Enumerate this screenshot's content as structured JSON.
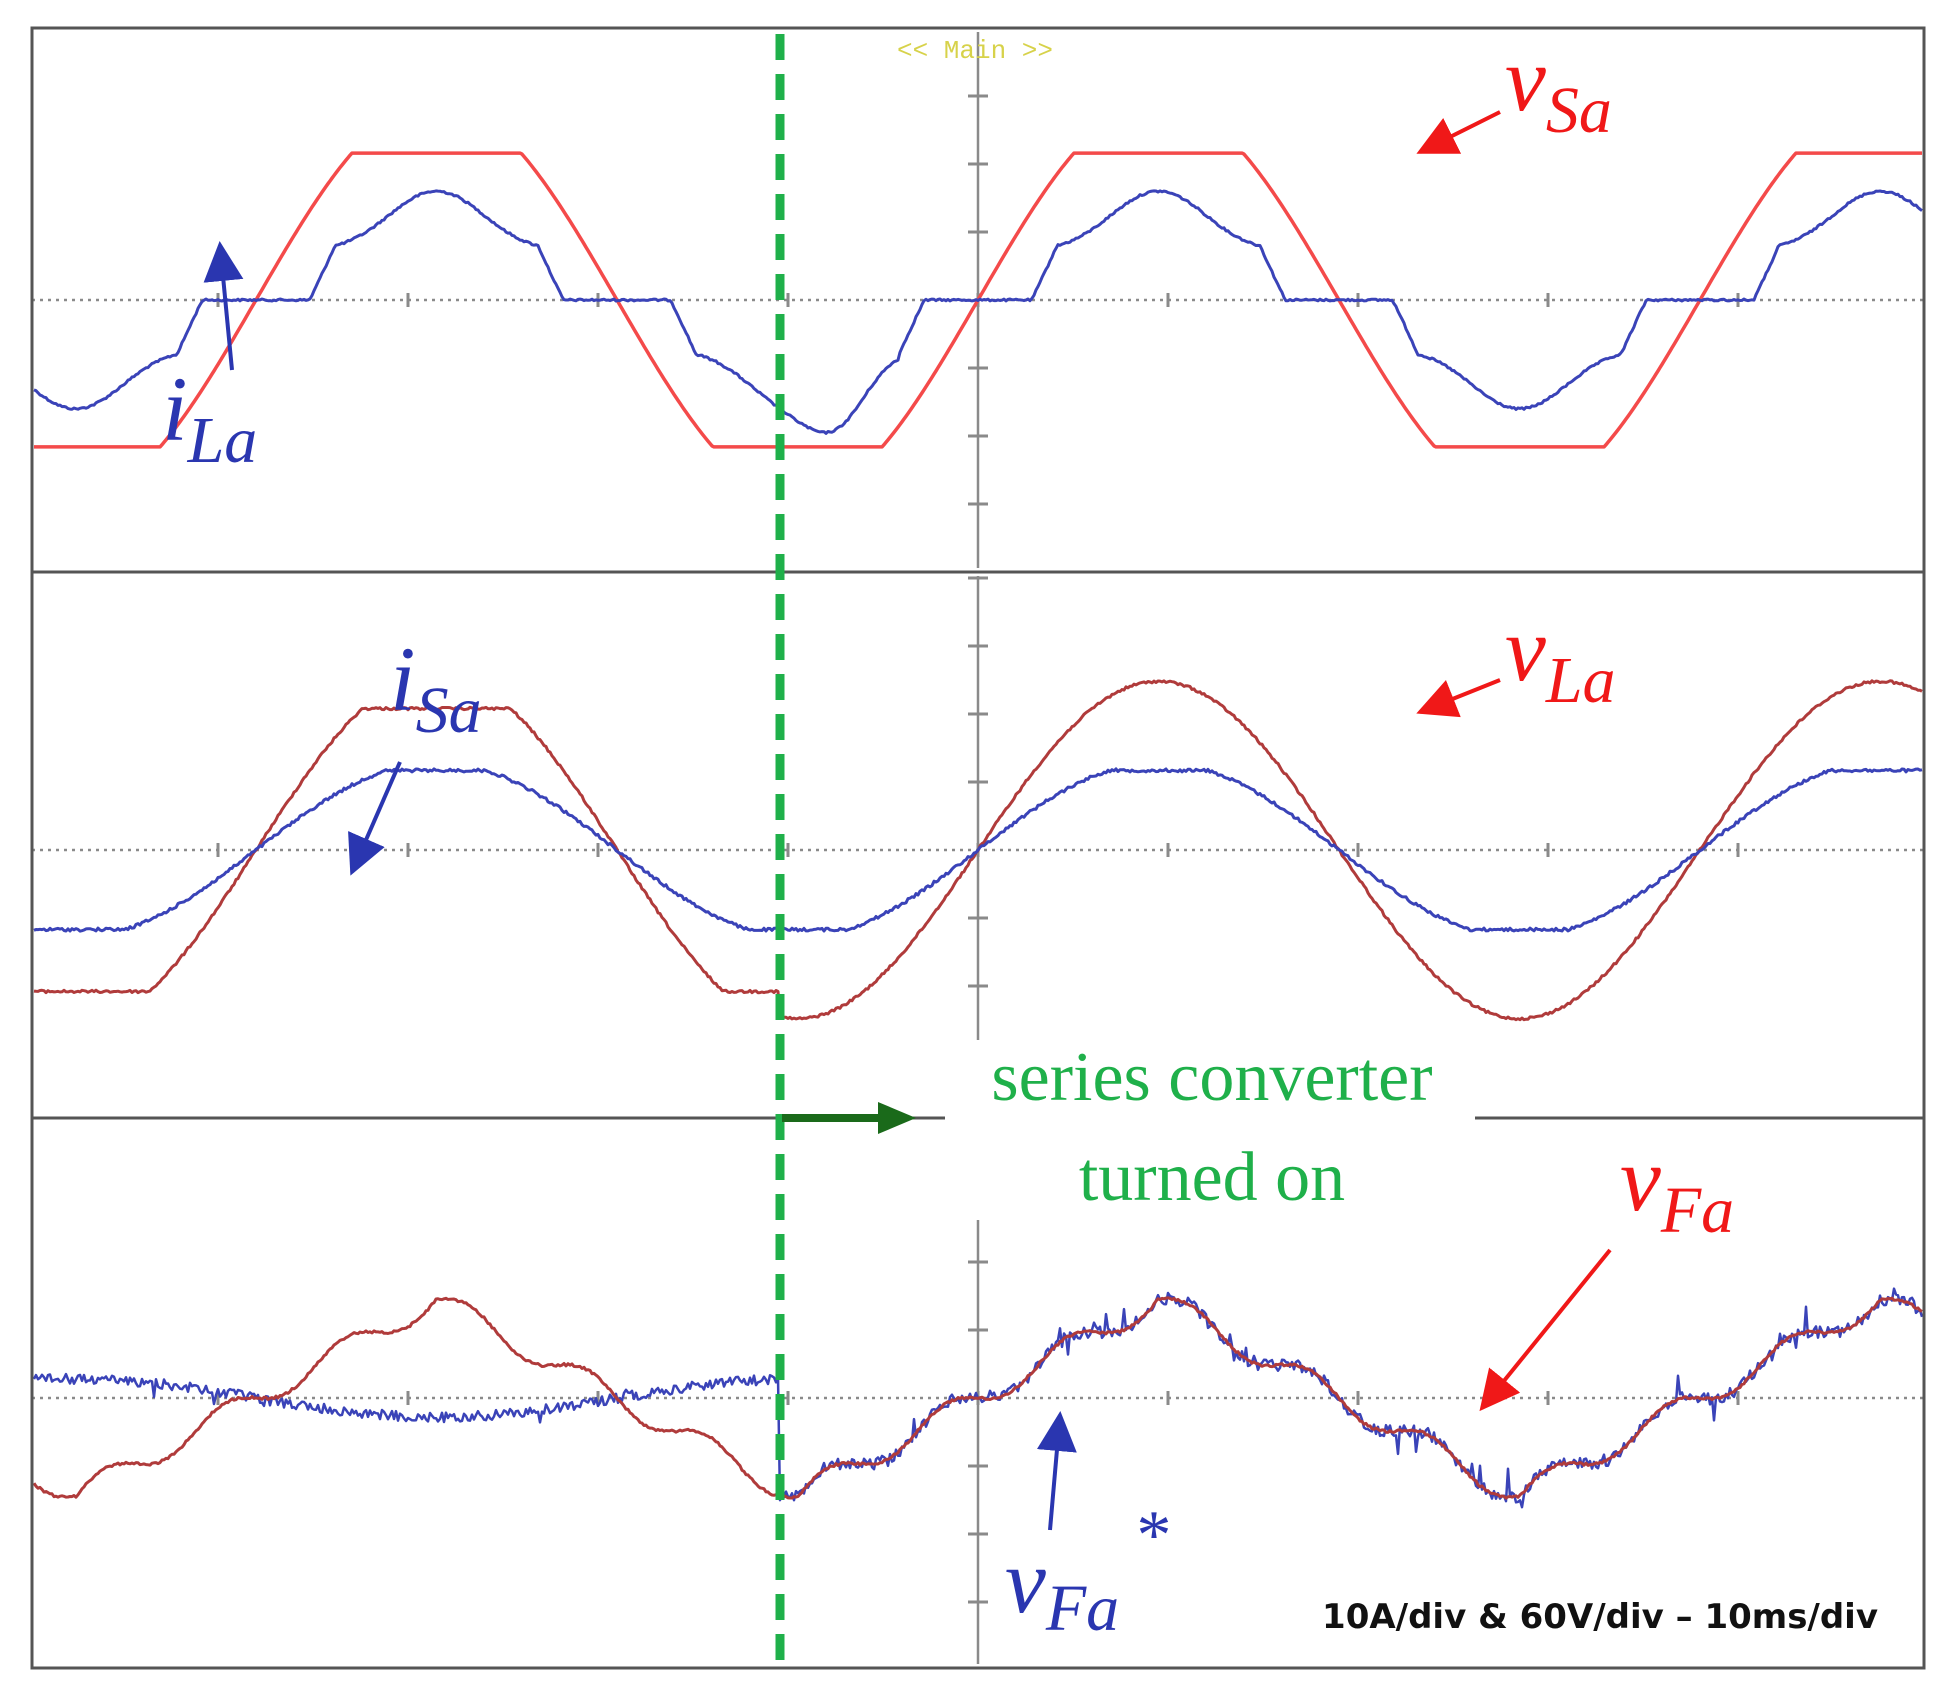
{
  "header": {
    "mode_label": "<< Main >>"
  },
  "scale_text": "10A/div & 60V/div – 10ms/div",
  "annotation": {
    "line1": "series converter",
    "line2": "turned on"
  },
  "colors": {
    "red": "#f44a4a",
    "dark_red": "#b03b3b",
    "blue": "#3a43b8",
    "green": "#1fb04a",
    "dark_green": "#1a6a1a",
    "grid": "#8a8a8a",
    "frame": "#555555",
    "mode_label": "#d7d24a"
  },
  "chart_data": [
    {
      "type": "line",
      "panel": "top",
      "time_div_ms": 10,
      "grid": true,
      "labels": {
        "voltage": "v",
        "voltage_sub": "Sa",
        "current": "i",
        "current_sub": "La"
      },
      "series": [
        {
          "id": "vSa",
          "color_key": "red",
          "shape": "trapezoid",
          "amplitude_div": 2.7,
          "period_div": 3.8,
          "peak_time_div": -2.85
        },
        {
          "id": "iLa",
          "color_key": "blue",
          "shape": "nonlinear-load",
          "amplitude_div": 1.6,
          "period_div": 3.8
        }
      ]
    },
    {
      "type": "line",
      "panel": "middle",
      "time_div_ms": 10,
      "grid": true,
      "labels": {
        "voltage": "v",
        "voltage_sub": "La",
        "current": "i",
        "current_sub": "Sa"
      },
      "series": [
        {
          "id": "vLa",
          "color_key": "dark_red",
          "amplitude_before_div": 2.6,
          "amplitude_after_div": 3.1,
          "period_div": 3.8
        },
        {
          "id": "iSa",
          "color_key": "blue",
          "amplitude_div": 1.3,
          "period_div": 3.8
        }
      ]
    },
    {
      "type": "line",
      "panel": "bottom",
      "time_div_ms": 10,
      "grid": true,
      "labels": {
        "voltage": "v",
        "voltage_sub": "Fa",
        "reference": "v",
        "reference_sub": "Fa",
        "reference_sup": "*"
      },
      "series": [
        {
          "id": "vFa",
          "color_key": "dark_red",
          "amplitude_div": 1.45,
          "period_div": 3.8
        },
        {
          "id": "vFa_ref",
          "color_key": "blue",
          "amplitude_before_div": 0.35,
          "amplitude_after_div": 1.45,
          "period_div": 3.8
        }
      ]
    }
  ]
}
